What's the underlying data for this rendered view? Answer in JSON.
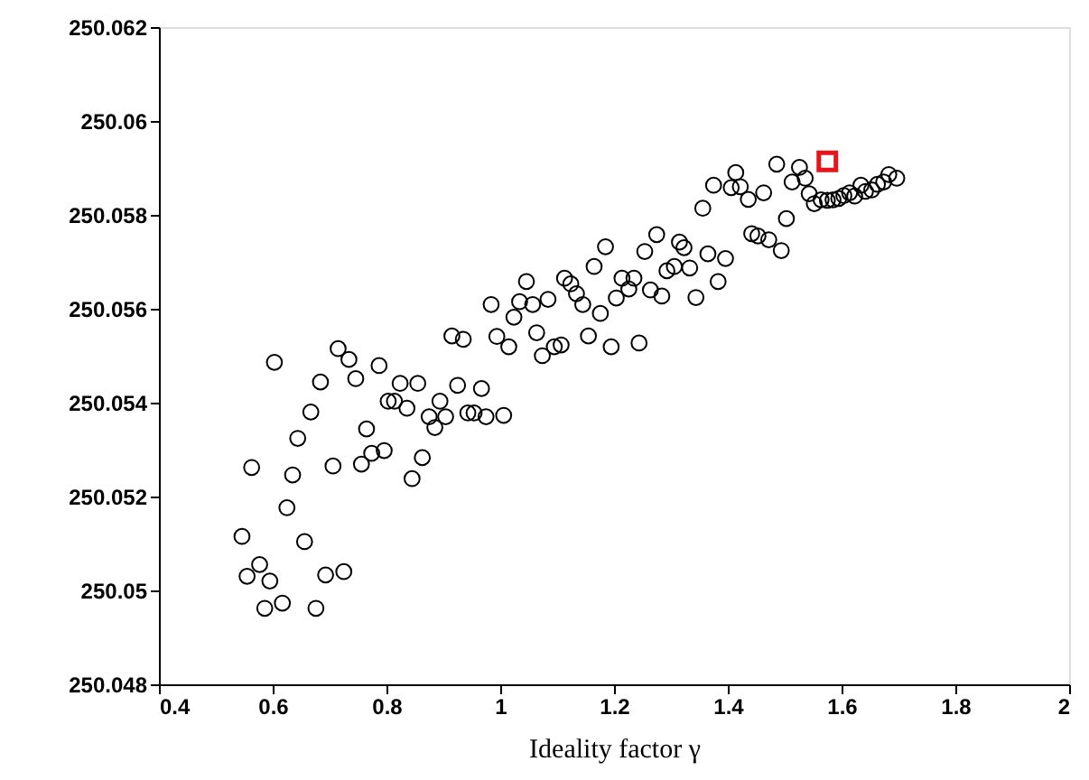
{
  "chart_data": {
    "type": "scatter",
    "xlabel": "Ideality factor γ",
    "xlim": [
      0.4,
      2
    ],
    "xticks": [
      0.4,
      0.6,
      0.8,
      1,
      1.2,
      1.4,
      1.6,
      1.8,
      2
    ],
    "ylim": [
      250.048,
      250.062
    ],
    "yticks": [
      250.048,
      250.05,
      250.052,
      250.054,
      250.056,
      250.058,
      250.06,
      250.062
    ],
    "grid": false,
    "series": [
      {
        "color": "#000000",
        "marker": "circle",
        "x": [
          0.546,
          0.563,
          0.555,
          0.577,
          0.595,
          0.586,
          0.617,
          0.603,
          0.625,
          0.635,
          0.644,
          0.656,
          0.667,
          0.676,
          0.684,
          0.693,
          0.706,
          0.715,
          0.725,
          0.734,
          0.746,
          0.756,
          0.765,
          0.774,
          0.787,
          0.796,
          0.803,
          0.814,
          0.824,
          0.836,
          0.845,
          0.855,
          0.863,
          0.875,
          0.885,
          0.894,
          0.904,
          0.915,
          0.925,
          0.935,
          0.943,
          0.954,
          0.967,
          0.975,
          0.984,
          0.994,
          1.006,
          1.015,
          1.024,
          1.034,
          1.046,
          1.057,
          1.064,
          1.074,
          1.084,
          1.095,
          1.107,
          1.113,
          1.124,
          1.134,
          1.145,
          1.155,
          1.165,
          1.176,
          1.185,
          1.195,
          1.204,
          1.214,
          1.226,
          1.235,
          1.244,
          1.254,
          1.264,
          1.275,
          1.284,
          1.293,
          1.306,
          1.315,
          1.323,
          1.333,
          1.344,
          1.356,
          1.365,
          1.375,
          1.383,
          1.396,
          1.406,
          1.414,
          1.422,
          1.436,
          1.442,
          1.453,
          1.463,
          1.472,
          1.486,
          1.494,
          1.503,
          1.513,
          1.526,
          1.536,
          1.543,
          1.552,
          1.564,
          1.575,
          1.585,
          1.595,
          1.604,
          1.614,
          1.623,
          1.634,
          1.642,
          1.653,
          1.663,
          1.674,
          1.683,
          1.697
        ],
        "values": [
          250.05115,
          250.05262,
          250.0503,
          250.05055,
          250.0502,
          250.04962,
          250.04973,
          250.05486,
          250.05176,
          250.05246,
          250.05324,
          250.05104,
          250.0538,
          250.04962,
          250.05444,
          250.05033,
          250.05265,
          250.05515,
          250.0504,
          250.05492,
          250.05451,
          250.05269,
          250.05344,
          250.05292,
          250.05479,
          250.05298,
          250.05403,
          250.05403,
          250.05441,
          250.05388,
          250.05238,
          250.05441,
          250.05283,
          250.0537,
          250.05347,
          250.05403,
          250.0537,
          250.05542,
          250.05437,
          250.05535,
          250.05378,
          250.05378,
          250.0543,
          250.0537,
          250.05609,
          250.05541,
          250.05373,
          250.05519,
          250.05582,
          250.05615,
          250.05658,
          250.05609,
          250.05549,
          250.055,
          250.0562,
          250.05519,
          250.05523,
          250.05665,
          250.05653,
          250.05632,
          250.05609,
          250.05542,
          250.0569,
          250.0559,
          250.05732,
          250.05519,
          250.05623,
          250.05665,
          250.05642,
          250.05665,
          250.05527,
          250.05722,
          250.0564,
          250.05758,
          250.05627,
          250.05681,
          250.0569,
          250.05742,
          250.0573,
          250.05687,
          250.05624,
          250.05814,
          250.05717,
          250.05863,
          250.05658,
          250.05707,
          250.05858,
          250.0589,
          250.0586,
          250.05833,
          250.0576,
          250.05755,
          250.05847,
          250.05747,
          250.05908,
          250.05724,
          250.05792,
          250.0587,
          250.05901,
          250.05878,
          250.05845,
          250.05824,
          250.05832,
          250.05831,
          250.05832,
          250.05835,
          250.05841,
          250.05847,
          250.0584,
          250.05863,
          250.0585,
          250.05853,
          250.05865,
          250.0587,
          250.05886,
          250.05878
        ]
      },
      {
        "color": "#e8141c",
        "marker": "square",
        "x": [
          1.575
        ],
        "values": [
          250.05914
        ]
      }
    ]
  }
}
